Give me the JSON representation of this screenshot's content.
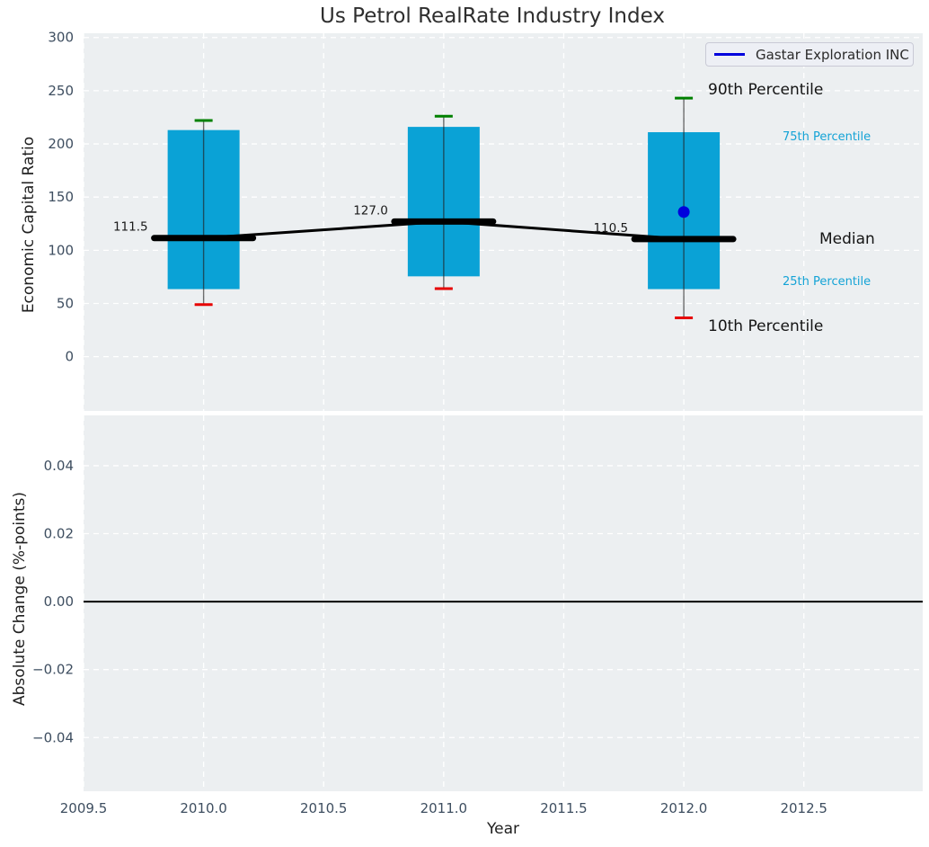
{
  "title": "Us Petrol RealRate Industry Index",
  "legend": {
    "label": "Gastar Exploration INC"
  },
  "annotations": {
    "p90": "90th Percentile",
    "p75": "75th Percentile",
    "median": "Median",
    "p25": "25th Percentile",
    "p10": "10th Percentile"
  },
  "median_labels": [
    "111.5",
    "127.0",
    "110.5"
  ],
  "axes": {
    "x": {
      "title": "Year",
      "values": [
        2009.5,
        2010.0,
        2010.5,
        2011.0,
        2011.5,
        2012.0,
        2012.5
      ],
      "labels": [
        "2009.5",
        "2010.0",
        "2010.5",
        "2011.0",
        "2011.5",
        "2012.0",
        "2012.5"
      ]
    },
    "top_y": {
      "title": "Economic Capital Ratio",
      "values": [
        300,
        250,
        200,
        150,
        100,
        50,
        0
      ],
      "labels": [
        "300",
        "250",
        "200",
        "150",
        "100",
        "50",
        "0"
      ]
    },
    "bottom_y": {
      "title": "Absolute Change (%-points)",
      "values": [
        0.04,
        0.02,
        0.0,
        -0.02,
        -0.04
      ],
      "labels": [
        "0.04",
        "0.02",
        "0.00",
        "−0.02",
        "−0.04"
      ]
    }
  },
  "chart_data": {
    "type": "boxplot",
    "title": "Us Petrol RealRate Industry Index",
    "xlabel": "Year",
    "xlim": [
      2009.5,
      2012.995
    ],
    "panels": [
      {
        "ylabel": "Economic Capital Ratio",
        "ylim": [
          -51,
          304
        ],
        "grid": true,
        "legend_position": "upper right",
        "boxes": [
          {
            "year": 2010,
            "p10": 49,
            "p25": 63.5,
            "median": 111.5,
            "p75": 213,
            "p90": 222
          },
          {
            "year": 2011,
            "p10": 64,
            "p25": 75.5,
            "median": 127.0,
            "p75": 216,
            "p90": 226
          },
          {
            "year": 2012,
            "p10": 36.5,
            "p25": 63.5,
            "median": 110.5,
            "p75": 211,
            "p90": 243
          }
        ],
        "median_line": {
          "x": [
            2010,
            2011,
            2012
          ],
          "y": [
            111.5,
            127.0,
            110.5
          ]
        },
        "company_series": {
          "name": "Gastar Exploration INC",
          "points": [
            {
              "year": 2012,
              "value": 136
            }
          ]
        }
      },
      {
        "ylabel": "Absolute Change (%-points)",
        "ylim": [
          -0.0558,
          0.0548
        ],
        "grid": true,
        "zero_line": true,
        "series": []
      }
    ]
  },
  "colors": {
    "plot_bg": "#eceff1",
    "grid": "#ffffff",
    "box_fill": "#0aa2d6",
    "whisker": "#222222",
    "cap_top": "#008000",
    "cap_bottom": "#e60000",
    "median": "#000000",
    "company_point": "#0000dd",
    "legend_line": "#0000dd",
    "tick_text": "#3e4e60",
    "label_text": "#1f1f1f",
    "cyan_text": "#14a3d6",
    "zero_line": "#000000"
  }
}
